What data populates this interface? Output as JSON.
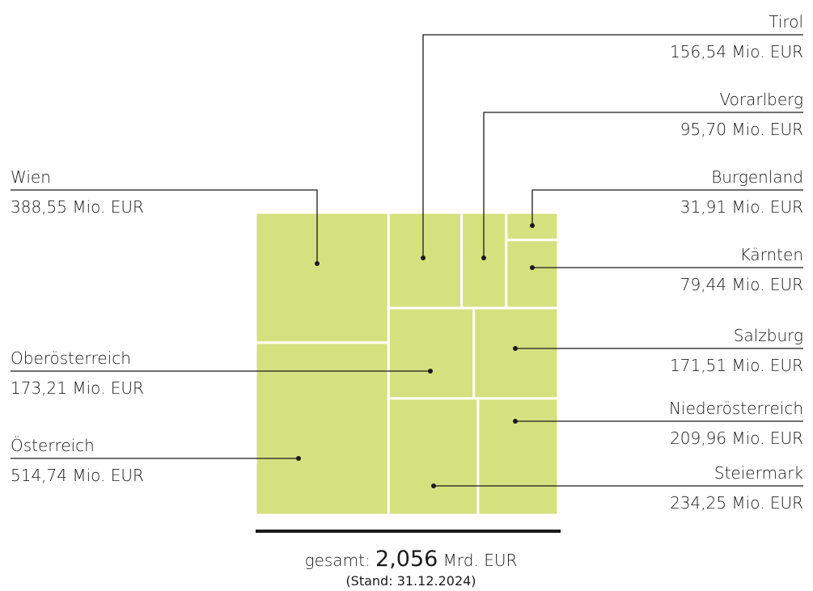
{
  "chart_data": {
    "type": "treemap",
    "unit": "Mio. EUR",
    "items": [
      {
        "name": "Österreich",
        "value": 514.74,
        "label": "514,74 Mio. EUR"
      },
      {
        "name": "Wien",
        "value": 388.55,
        "label": "388,55 Mio. EUR"
      },
      {
        "name": "Steiermark",
        "value": 234.25,
        "label": "234,25 Mio. EUR"
      },
      {
        "name": "Niederösterreich",
        "value": 209.96,
        "label": "209,96 Mio. EUR"
      },
      {
        "name": "Oberösterreich",
        "value": 173.21,
        "label": "173,21 Mio. EUR"
      },
      {
        "name": "Salzburg",
        "value": 171.51,
        "label": "171,51 Mio. EUR"
      },
      {
        "name": "Tirol",
        "value": 156.54,
        "label": "156,54 Mio. EUR"
      },
      {
        "name": "Vorarlberg",
        "value": 95.7,
        "label": "95,70 Mio. EUR"
      },
      {
        "name": "Kärnten",
        "value": 79.44,
        "label": "79,44 Mio. EUR"
      },
      {
        "name": "Burgenland",
        "value": 31.91,
        "label": "31,91 Mio. EUR"
      }
    ],
    "fill_color": "#d4e17f",
    "total": {
      "prefix": "gesamt: ",
      "value": "2,056",
      "suffix": " Mrd. EUR",
      "note": "(Stand: 31.12.2024)"
    }
  }
}
